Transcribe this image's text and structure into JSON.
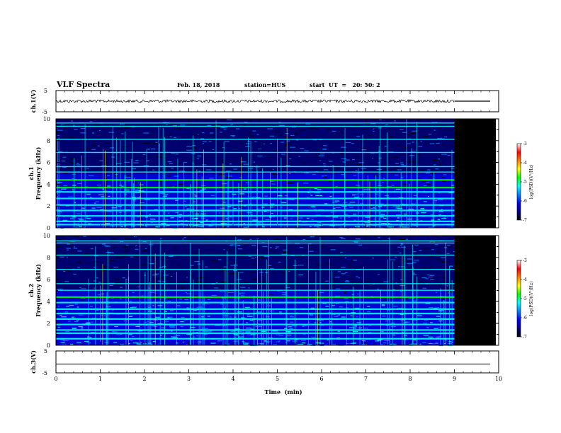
{
  "header": {
    "title": "VLF Spectra",
    "date": "Feb. 18, 2018",
    "station": "station=HUS",
    "start": "start  UT  =   20: 50: 2"
  },
  "chart_data": {
    "type": "heatmap",
    "x_axis": {
      "label": "Time  (min)",
      "range": [
        0,
        10
      ],
      "ticks": [
        "0",
        "1",
        "2",
        "3",
        "4",
        "5",
        "6",
        "7",
        "8",
        "9",
        "10"
      ]
    },
    "data_end_min": 9.0,
    "panels": [
      {
        "name": "ch.1(V)",
        "kind": "waveform",
        "ylabel": "ch.1(V)",
        "ylim": [
          -5,
          5
        ],
        "ticks": [
          "5",
          "-5"
        ],
        "mean_level": 0
      },
      {
        "name": "ch.1",
        "kind": "spectrogram",
        "ylabel_channel": "ch.1",
        "ylabel": "Frequency  (kHz)",
        "ylim": [
          0,
          10
        ],
        "ticks": [
          "0",
          "2",
          "4",
          "6",
          "8",
          "10"
        ],
        "colorbar": {
          "label": "log(PSD)(V²/Hz)",
          "range": [
            -7,
            -3
          ],
          "ticks": [
            "-3",
            "-4",
            "-5",
            "-6",
            "-7"
          ]
        }
      },
      {
        "name": "ch.2",
        "kind": "spectrogram",
        "ylabel_channel": "ch.2",
        "ylabel": "Frequency  (kHz)",
        "ylim": [
          0,
          10
        ],
        "ticks": [
          "0",
          "2",
          "4",
          "6",
          "8",
          "10"
        ],
        "colorbar": {
          "label": "log(PSD)(V²/Hz)",
          "range": [
            -7,
            -3
          ],
          "ticks": [
            "-3",
            "-4",
            "-5",
            "-6",
            "-7"
          ]
        }
      },
      {
        "name": "ch.3(V)",
        "kind": "waveform",
        "ylabel": "ch.3(V)",
        "ylim": [
          -5,
          5
        ],
        "ticks": [
          "5",
          "-5"
        ],
        "mean_level": -1
      }
    ],
    "narrowband_lines_khz": {
      "ch.1": [
        0.3,
        0.6,
        1.1,
        1.6,
        2.1,
        2.7,
        3.3,
        3.7,
        4.4,
        5.1,
        5.6,
        6.9,
        8.1,
        9.3,
        9.6
      ],
      "ch.2": [
        0.6,
        1.1,
        1.4,
        1.9,
        2.4,
        2.9,
        3.3,
        3.9,
        4.4,
        5.0,
        5.6,
        6.9,
        8.2,
        9.3,
        9.5
      ]
    },
    "colormap": [
      "#000000",
      "#00008b",
      "#0000ff",
      "#0080ff",
      "#00ffff",
      "#00ff00",
      "#ffff00",
      "#ff8000",
      "#ff0000",
      "#ffffff"
    ]
  }
}
